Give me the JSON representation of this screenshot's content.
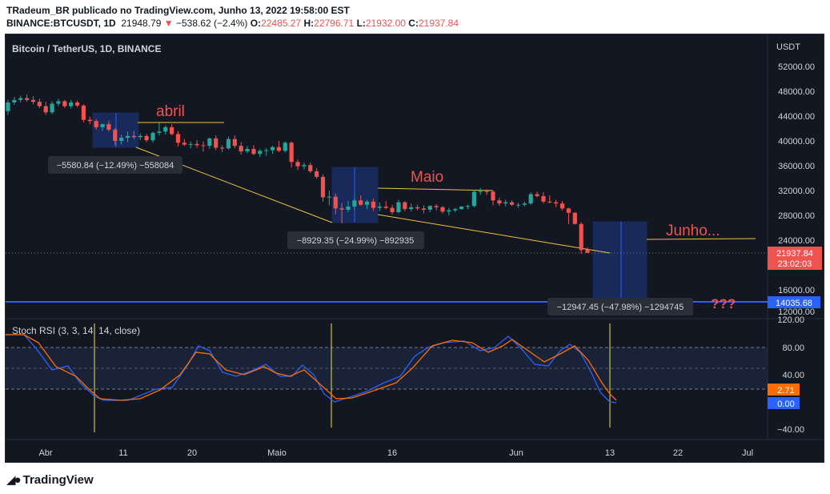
{
  "header": {
    "line1": "TRadeum_BR publicado no TradingView.com, Junho 13, 2022 19:58:00 EST",
    "symbol": "BINANCE:BTCUSDT, 1D",
    "last": "21948.79",
    "arrow": "▼",
    "change": "−538.62 (−2.4%)",
    "o_label": "O:",
    "o_val": "22485.27",
    "h_label": "H:",
    "h_val": "22796.71",
    "l_label": "L:",
    "l_val": "21932.00",
    "c_label": "C:",
    "c_val": "21937.84"
  },
  "main_title": "Bitcoin / TetherUS, 1D, BINANCE",
  "currency": "USDT",
  "price_ticks": [
    "52000.00",
    "48000.00",
    "44000.00",
    "40000.00",
    "36000.00",
    "32000.00",
    "28000.00",
    "24000.00",
    "16000.00",
    "12000.00"
  ],
  "price_labels": {
    "last": "21937.84",
    "countdown": "23:02:03",
    "support": "14035.68"
  },
  "annotations": {
    "abril": "abril",
    "maio": "Maio",
    "junho": "Junho...",
    "question": "???",
    "m1": "−5580.84 (−12.49%) −558084",
    "m2": "−8929.35 (−24.99%) −892935",
    "m3": "−12947.45 (−47.98%) −1294745"
  },
  "stoch_title": "Stoch RSI (3, 3, 14, 14, close)",
  "stoch_ticks": [
    "120.00",
    "80.00",
    "40.00",
    "−40.00"
  ],
  "stoch_labels": {
    "d": "2.71",
    "k": "0.00"
  },
  "x_ticks": [
    "Abr",
    "11",
    "20",
    "Maio",
    "16",
    "Jun",
    "13",
    "22",
    "Jul"
  ],
  "logo": "TradingView",
  "colors": {
    "up": "#26a69a",
    "down": "#ef5350",
    "k_line": "#2962ff",
    "d_line": "#ff6d00",
    "trend": "#f0c43c"
  },
  "chart_data": {
    "type": "candlestick",
    "y_range": [
      10000,
      54000
    ],
    "candles": [
      {
        "o": 44800,
        "h": 46600,
        "l": 44200,
        "c": 46200
      },
      {
        "o": 46200,
        "h": 47100,
        "l": 45800,
        "c": 46600
      },
      {
        "o": 46600,
        "h": 47300,
        "l": 46200,
        "c": 46900
      },
      {
        "o": 46900,
        "h": 47500,
        "l": 46300,
        "c": 46600
      },
      {
        "o": 46600,
        "h": 47200,
        "l": 45900,
        "c": 46300
      },
      {
        "o": 46300,
        "h": 46800,
        "l": 45300,
        "c": 45600
      },
      {
        "o": 45600,
        "h": 46300,
        "l": 44200,
        "c": 44600
      },
      {
        "o": 44600,
        "h": 46400,
        "l": 44300,
        "c": 46000
      },
      {
        "o": 46000,
        "h": 46800,
        "l": 45600,
        "c": 46400
      },
      {
        "o": 46400,
        "h": 46600,
        "l": 45300,
        "c": 45600
      },
      {
        "o": 45600,
        "h": 46600,
        "l": 45200,
        "c": 46200
      },
      {
        "o": 46200,
        "h": 46500,
        "l": 45400,
        "c": 45700
      },
      {
        "o": 45700,
        "h": 45900,
        "l": 43000,
        "c": 43400
      },
      {
        "o": 43400,
        "h": 43900,
        "l": 42700,
        "c": 43200
      },
      {
        "o": 43200,
        "h": 43500,
        "l": 41800,
        "c": 42200
      },
      {
        "o": 42200,
        "h": 42800,
        "l": 41600,
        "c": 42700
      },
      {
        "o": 42700,
        "h": 43200,
        "l": 41500,
        "c": 41800
      },
      {
        "o": 41800,
        "h": 42100,
        "l": 39300,
        "c": 40000
      },
      {
        "o": 40000,
        "h": 41000,
        "l": 39400,
        "c": 40500
      },
      {
        "o": 40500,
        "h": 41500,
        "l": 39800,
        "c": 40800
      },
      {
        "o": 40800,
        "h": 41600,
        "l": 40300,
        "c": 40600
      },
      {
        "o": 40600,
        "h": 41200,
        "l": 40100,
        "c": 40800
      },
      {
        "o": 40800,
        "h": 41100,
        "l": 39800,
        "c": 40100
      },
      {
        "o": 40100,
        "h": 41500,
        "l": 39700,
        "c": 41300
      },
      {
        "o": 41300,
        "h": 42900,
        "l": 40900,
        "c": 41500
      },
      {
        "o": 41500,
        "h": 42500,
        "l": 41000,
        "c": 42200
      },
      {
        "o": 42200,
        "h": 42700,
        "l": 40900,
        "c": 41100
      },
      {
        "o": 41100,
        "h": 41600,
        "l": 39100,
        "c": 39700
      },
      {
        "o": 39700,
        "h": 40300,
        "l": 39200,
        "c": 39400
      },
      {
        "o": 39400,
        "h": 39900,
        "l": 38800,
        "c": 39500
      },
      {
        "o": 39500,
        "h": 40100,
        "l": 38900,
        "c": 39300
      },
      {
        "o": 39300,
        "h": 39900,
        "l": 38300,
        "c": 39200
      },
      {
        "o": 39200,
        "h": 40500,
        "l": 38700,
        "c": 40400
      },
      {
        "o": 40400,
        "h": 40900,
        "l": 38500,
        "c": 38900
      },
      {
        "o": 38900,
        "h": 39300,
        "l": 38200,
        "c": 38800
      },
      {
        "o": 38800,
        "h": 40700,
        "l": 38600,
        "c": 40300
      },
      {
        "o": 40300,
        "h": 40900,
        "l": 38800,
        "c": 39200
      },
      {
        "o": 39200,
        "h": 39800,
        "l": 37800,
        "c": 38300
      },
      {
        "o": 38300,
        "h": 39200,
        "l": 38000,
        "c": 38700
      },
      {
        "o": 38700,
        "h": 39300,
        "l": 37700,
        "c": 37900
      },
      {
        "o": 37900,
        "h": 38700,
        "l": 37400,
        "c": 38400
      },
      {
        "o": 38400,
        "h": 38800,
        "l": 37600,
        "c": 38500
      },
      {
        "o": 38500,
        "h": 39200,
        "l": 37900,
        "c": 39000
      },
      {
        "o": 39000,
        "h": 40000,
        "l": 38200,
        "c": 38400
      },
      {
        "o": 38400,
        "h": 39900,
        "l": 38100,
        "c": 39700
      },
      {
        "o": 39700,
        "h": 39900,
        "l": 35700,
        "c": 36600
      },
      {
        "o": 36600,
        "h": 37000,
        "l": 35300,
        "c": 35900
      },
      {
        "o": 35900,
        "h": 36500,
        "l": 35400,
        "c": 36100
      },
      {
        "o": 36100,
        "h": 36500,
        "l": 34800,
        "c": 35100
      },
      {
        "o": 35100,
        "h": 35600,
        "l": 33900,
        "c": 34200
      },
      {
        "o": 34200,
        "h": 34600,
        "l": 30200,
        "c": 30900
      },
      {
        "o": 30900,
        "h": 32000,
        "l": 29600,
        "c": 31000
      },
      {
        "o": 31000,
        "h": 31500,
        "l": 28200,
        "c": 29100
      },
      {
        "o": 29100,
        "h": 30000,
        "l": 26700,
        "c": 28900
      },
      {
        "o": 28900,
        "h": 30300,
        "l": 28500,
        "c": 29400
      },
      {
        "o": 29400,
        "h": 30800,
        "l": 28900,
        "c": 30400
      },
      {
        "o": 30400,
        "h": 31200,
        "l": 29500,
        "c": 29700
      },
      {
        "o": 29700,
        "h": 30500,
        "l": 29000,
        "c": 30200
      },
      {
        "o": 30200,
        "h": 30700,
        "l": 28700,
        "c": 29200
      },
      {
        "o": 29200,
        "h": 30100,
        "l": 28700,
        "c": 29400
      },
      {
        "o": 29400,
        "h": 30300,
        "l": 29000,
        "c": 29200
      },
      {
        "o": 29200,
        "h": 29700,
        "l": 28100,
        "c": 28500
      },
      {
        "o": 28500,
        "h": 30500,
        "l": 28300,
        "c": 30100
      },
      {
        "o": 30100,
        "h": 30300,
        "l": 28600,
        "c": 29000
      },
      {
        "o": 29000,
        "h": 29900,
        "l": 28600,
        "c": 29300
      },
      {
        "o": 29300,
        "h": 29700,
        "l": 28800,
        "c": 29100
      },
      {
        "o": 29100,
        "h": 29600,
        "l": 28300,
        "c": 28900
      },
      {
        "o": 28900,
        "h": 29600,
        "l": 28500,
        "c": 29500
      },
      {
        "o": 29500,
        "h": 29800,
        "l": 28800,
        "c": 29300
      },
      {
        "o": 29300,
        "h": 29500,
        "l": 28300,
        "c": 28600
      },
      {
        "o": 28600,
        "h": 29200,
        "l": 28000,
        "c": 28800
      },
      {
        "o": 28800,
        "h": 29200,
        "l": 28500,
        "c": 29000
      },
      {
        "o": 29000,
        "h": 29500,
        "l": 28900,
        "c": 29400
      },
      {
        "o": 29400,
        "h": 29700,
        "l": 29000,
        "c": 29500
      },
      {
        "o": 29500,
        "h": 32100,
        "l": 29300,
        "c": 31800
      },
      {
        "o": 31800,
        "h": 32400,
        "l": 31300,
        "c": 31900
      },
      {
        "o": 31900,
        "h": 32200,
        "l": 31300,
        "c": 31800
      },
      {
        "o": 31800,
        "h": 32000,
        "l": 29600,
        "c": 30400
      },
      {
        "o": 30400,
        "h": 30800,
        "l": 29500,
        "c": 29900
      },
      {
        "o": 29900,
        "h": 30500,
        "l": 29400,
        "c": 30100
      },
      {
        "o": 30100,
        "h": 30400,
        "l": 29500,
        "c": 29700
      },
      {
        "o": 29700,
        "h": 30000,
        "l": 29200,
        "c": 29700
      },
      {
        "o": 29700,
        "h": 30200,
        "l": 29400,
        "c": 29900
      },
      {
        "o": 29900,
        "h": 31700,
        "l": 29700,
        "c": 31400
      },
      {
        "o": 31400,
        "h": 31800,
        "l": 30900,
        "c": 31100
      },
      {
        "o": 31100,
        "h": 31700,
        "l": 29900,
        "c": 30200
      },
      {
        "o": 30200,
        "h": 31200,
        "l": 29900,
        "c": 30100
      },
      {
        "o": 30100,
        "h": 30500,
        "l": 29300,
        "c": 29900
      },
      {
        "o": 29900,
        "h": 30300,
        "l": 28800,
        "c": 29100
      },
      {
        "o": 29100,
        "h": 29200,
        "l": 26600,
        "c": 28400
      },
      {
        "o": 28400,
        "h": 28500,
        "l": 26500,
        "c": 26600
      },
      {
        "o": 26600,
        "h": 26900,
        "l": 21800,
        "c": 22400
      },
      {
        "o": 22485,
        "h": 22797,
        "l": 21932,
        "c": 21938
      }
    ]
  }
}
